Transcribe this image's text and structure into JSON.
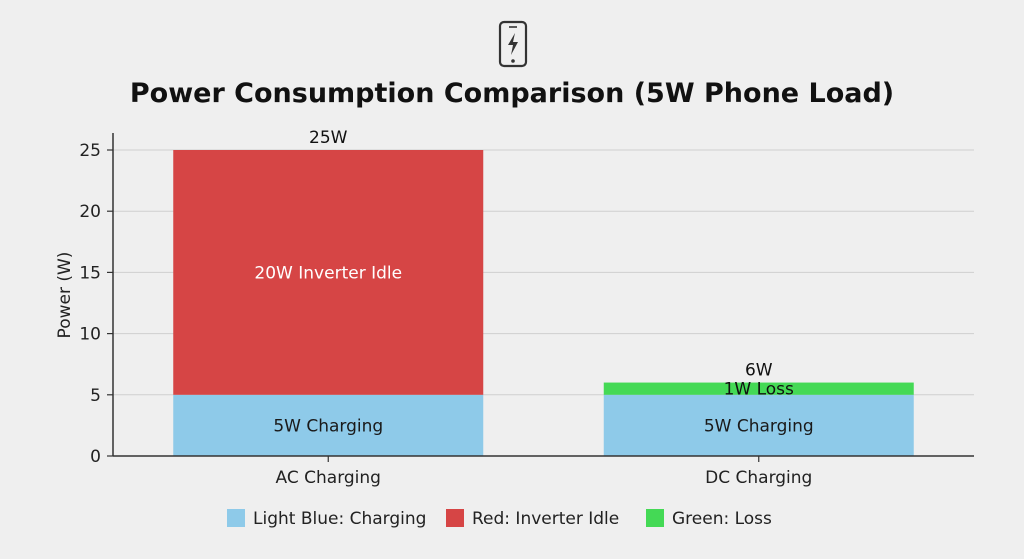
{
  "chart_data": {
    "type": "bar",
    "stacked": true,
    "title": "Power Consumption Comparison (5W Phone Load)",
    "title_icon": "phone-charging-icon",
    "xlabel": "",
    "ylabel": "Power (W)",
    "ylim": [
      0,
      25
    ],
    "yticks": [
      0,
      5,
      10,
      15,
      20,
      25
    ],
    "grid": true,
    "legend_position": "bottom",
    "categories": [
      "AC Charging",
      "DC Charging"
    ],
    "series": [
      {
        "key": "charging",
        "values": [
          5,
          5
        ],
        "color": "#8ecae9",
        "segment_labels": [
          "5W Charging",
          "5W Charging"
        ],
        "label_color": "#1a1a1a"
      },
      {
        "key": "inverter_idle",
        "values": [
          20,
          0
        ],
        "color": "#d64545",
        "segment_labels": [
          "20W Inverter Idle",
          ""
        ],
        "label_color": "#ffffff"
      },
      {
        "key": "loss",
        "values": [
          0,
          1
        ],
        "color": "#44d955",
        "segment_labels": [
          "",
          "1W Loss"
        ],
        "label_color": "#111111"
      }
    ],
    "totals": [
      "25W",
      "6W"
    ],
    "legend": [
      {
        "label": "Light Blue: Charging",
        "color": "#8ecae9"
      },
      {
        "label": "Red: Inverter Idle",
        "color": "#d64545"
      },
      {
        "label": "Green: Loss",
        "color": "#44d955"
      }
    ]
  }
}
